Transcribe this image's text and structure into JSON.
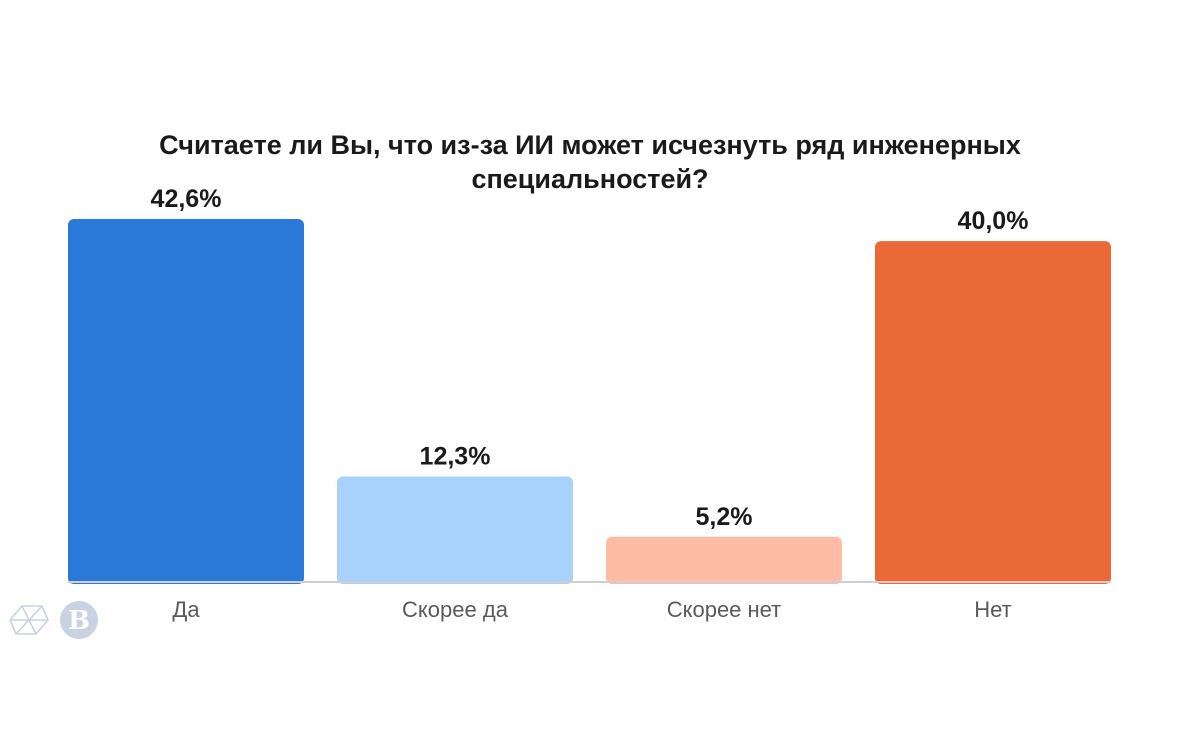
{
  "chart_data": {
    "type": "bar",
    "title_lines": [
      "Считаете ли Вы, что из-за ИИ может исчезнуть ряд инженерных",
      "специальностей?"
    ],
    "categories": [
      "Да",
      "Скорее да",
      "Скорее нет",
      "Нет"
    ],
    "values": [
      42.6,
      12.3,
      5.2,
      40.0
    ],
    "value_labels": [
      "42,6%",
      "12,3%",
      "5,2%",
      "40,0%"
    ],
    "colors": [
      "#2a78d7",
      "#a8d1fb",
      "#febba6",
      "#ea6937"
    ],
    "unit": "%",
    "xlabel": "",
    "ylabel": "",
    "ylim": [
      0,
      42.6
    ],
    "grid": false,
    "legend": "none"
  },
  "logos": {
    "left_icon": "wireframe-logo-icon",
    "right_icon": "hse-seal-logo-icon",
    "right_letter": "В"
  }
}
